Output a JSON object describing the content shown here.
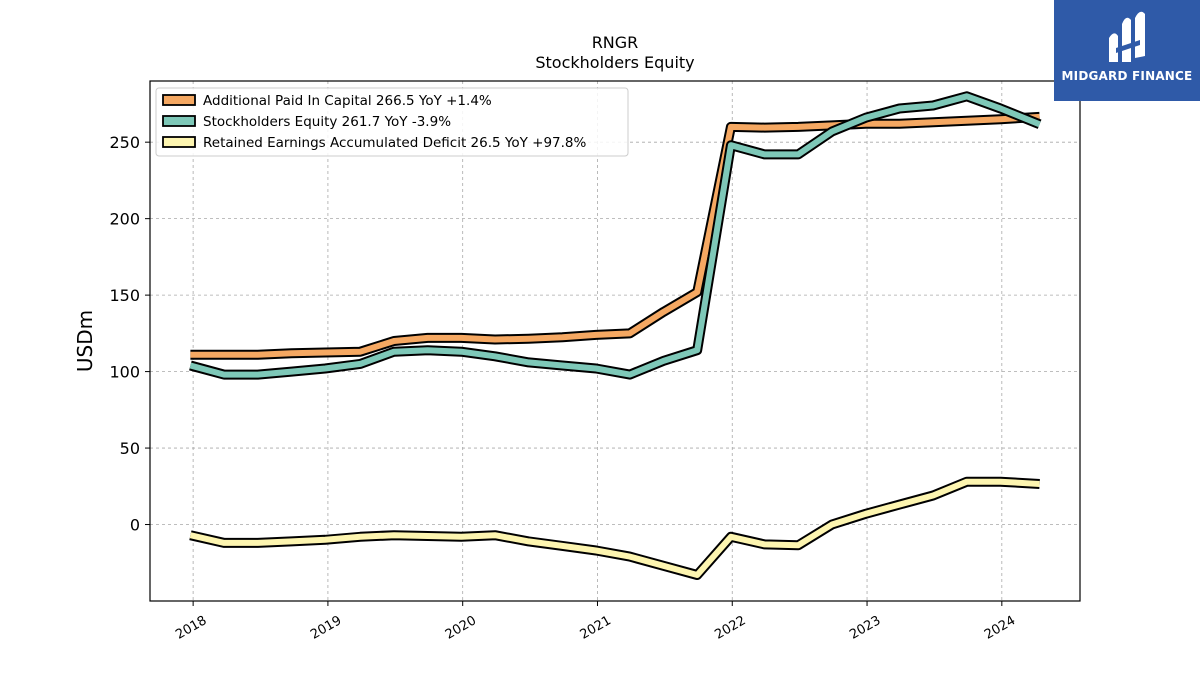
{
  "chart_data": {
    "type": "line",
    "title": "RNGR",
    "subtitle": "Stockholders  Equity",
    "ylabel": "USDm",
    "xlabel": "",
    "ylim": [
      -50,
      290
    ],
    "xlim": [
      2017.68,
      2024.58
    ],
    "yticks": [
      0,
      50,
      100,
      150,
      200,
      250
    ],
    "xticks": [
      "2018",
      "2019",
      "2020",
      "2021",
      "2022",
      "2023",
      "2024"
    ],
    "grid": true,
    "legend_position": "top-left",
    "series": [
      {
        "name": "Additional Paid In Capital  266.5 YoY +1.4%",
        "color": "#f5a862",
        "x": [
          2017.98,
          2018.23,
          2018.48,
          2018.73,
          2018.98,
          2019.24,
          2019.49,
          2019.74,
          2019.99,
          2020.24,
          2020.49,
          2020.74,
          2020.99,
          2021.24,
          2021.49,
          2021.74,
          2021.99,
          2022.24,
          2022.49,
          2022.74,
          2022.99,
          2023.24,
          2023.49,
          2023.74,
          2023.99,
          2024.28
        ],
        "values": [
          111,
          111,
          111,
          112,
          112.5,
          113,
          120,
          122,
          122,
          121,
          121.5,
          122.5,
          124,
          125,
          139,
          152,
          260,
          259.5,
          260,
          261,
          262,
          262,
          263,
          264,
          265,
          266.5
        ]
      },
      {
        "name": "Stockholders Equity  261.7 YoY -3.9%",
        "color": "#7ec8b8",
        "x": [
          2017.98,
          2018.23,
          2018.48,
          2018.73,
          2018.98,
          2019.24,
          2019.49,
          2019.74,
          2019.99,
          2020.24,
          2020.49,
          2020.74,
          2020.99,
          2021.24,
          2021.49,
          2021.74,
          2021.99,
          2022.24,
          2022.49,
          2022.74,
          2022.99,
          2023.24,
          2023.49,
          2023.74,
          2023.99,
          2024.28
        ],
        "values": [
          104,
          98,
          98,
          100,
          102,
          105,
          113,
          114,
          113,
          110,
          106,
          104,
          102,
          98,
          107,
          114,
          248,
          242,
          242,
          257,
          266,
          272,
          274,
          280,
          272,
          261.7
        ]
      },
      {
        "name": "Retained Earnings Accumulated Deficit  26.5 YoY +97.8%",
        "color": "#fdf5b0",
        "x": [
          2017.98,
          2018.23,
          2018.48,
          2018.73,
          2018.98,
          2019.24,
          2019.49,
          2019.74,
          2019.99,
          2020.24,
          2020.49,
          2020.74,
          2020.99,
          2021.24,
          2021.49,
          2021.74,
          2021.99,
          2022.24,
          2022.49,
          2022.74,
          2022.99,
          2023.24,
          2023.49,
          2023.74,
          2023.99,
          2024.28
        ],
        "values": [
          -7,
          -12,
          -12,
          -11,
          -10,
          -8,
          -7,
          -7.5,
          -8,
          -7,
          -11,
          -14,
          -17,
          -21,
          -27,
          -33,
          -8,
          -13,
          -13.5,
          0,
          7,
          13,
          19,
          28,
          28,
          26.5
        ]
      }
    ]
  },
  "logo": {
    "text": "MIDGARD FINANCE",
    "color": "#2f5aa8"
  }
}
